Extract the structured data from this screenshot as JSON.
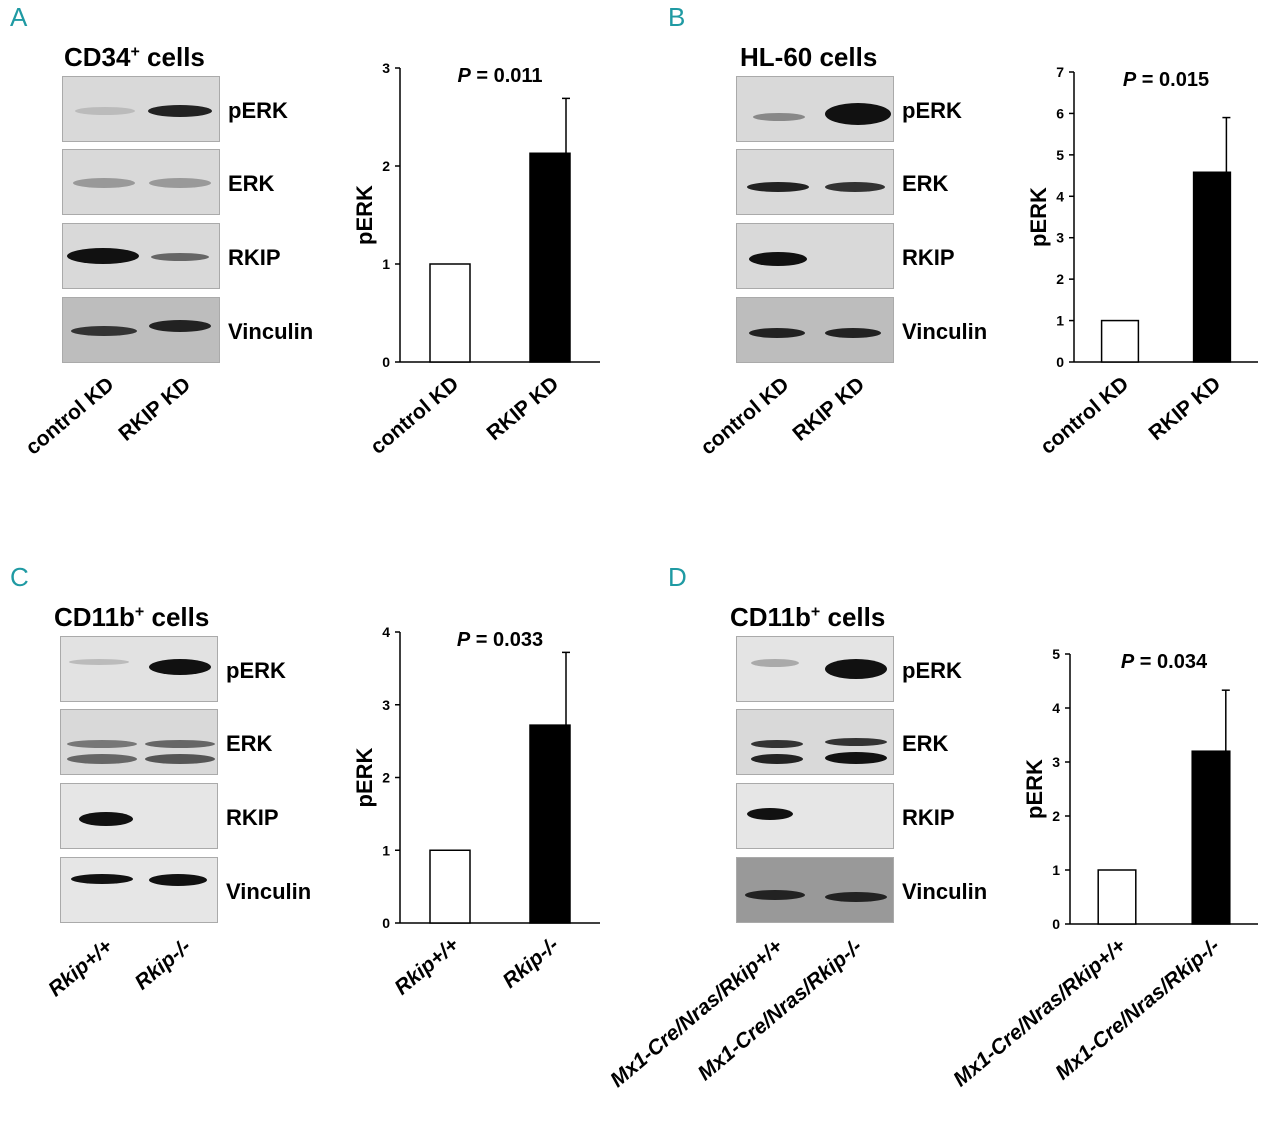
{
  "panels": [
    {
      "letter": "A",
      "blot_title": "CD34",
      "blot_title_sup": "+",
      "blot_title_rest": " cells",
      "blot_labels": [
        "pERK",
        "ERK",
        "RKIP",
        "Vinculin"
      ],
      "lane_labels": [
        "control KD",
        "RKIP KD"
      ],
      "chart_data": {
        "type": "bar",
        "categories": [
          "control KD",
          "RKIP KD"
        ],
        "values": [
          1,
          2.13
        ],
        "errors": [
          0,
          0.56
        ],
        "ylabel": "pERK",
        "ylim": [
          0,
          3
        ],
        "yticks": [
          0,
          1,
          2,
          3
        ],
        "annotation_p": "P",
        "annotation_value": " = 0.011",
        "bar_fills": [
          "#ffffff",
          "#000000"
        ]
      }
    },
    {
      "letter": "B",
      "blot_title": "HL-60 cells",
      "blot_title_sup": "",
      "blot_title_rest": "",
      "blot_labels": [
        "pERK",
        "ERK",
        "RKIP",
        "Vinculin"
      ],
      "lane_labels": [
        "control KD",
        "RKIP KD"
      ],
      "chart_data": {
        "type": "bar",
        "categories": [
          "control KD",
          "RKIP KD"
        ],
        "values": [
          1,
          4.58
        ],
        "errors": [
          0,
          1.32
        ],
        "ylabel": "pERK",
        "ylim": [
          0,
          7
        ],
        "yticks": [
          0,
          1,
          2,
          3,
          4,
          5,
          6,
          7
        ],
        "annotation_p": "P",
        "annotation_value": " = 0.015",
        "bar_fills": [
          "#ffffff",
          "#000000"
        ]
      }
    },
    {
      "letter": "C",
      "blot_title": "CD11b",
      "blot_title_sup": "+",
      "blot_title_rest": " cells",
      "blot_labels": [
        "pERK",
        "ERK",
        "RKIP",
        "Vinculin"
      ],
      "lane_labels": [
        "Rkip+/+",
        "Rkip-/-"
      ],
      "chart_data": {
        "type": "bar",
        "categories": [
          "Rkip+/+",
          "Rkip-/-"
        ],
        "values": [
          1,
          2.72
        ],
        "errors": [
          0,
          1.0
        ],
        "ylabel": "pERK",
        "ylim": [
          0,
          4
        ],
        "yticks": [
          0,
          1,
          2,
          3,
          4
        ],
        "annotation_p": "P",
        "annotation_value": " = 0.033",
        "bar_fills": [
          "#ffffff",
          "#000000"
        ]
      }
    },
    {
      "letter": "D",
      "blot_title": "CD11b",
      "blot_title_sup": "+",
      "blot_title_rest": " cells",
      "blot_labels": [
        "pERK",
        "ERK",
        "RKIP",
        "Vinculin"
      ],
      "lane_labels": [
        "Mx1-Cre/Nras/Rkip+/+",
        "Mx1-Cre/Nras/Rkip-/-"
      ],
      "chart_data": {
        "type": "bar",
        "categories": [
          "Mx1-Cre/Nras/Rkip+/+",
          "Mx1-Cre/Nras/Rkip-/-"
        ],
        "values": [
          1,
          3.2
        ],
        "errors": [
          0,
          1.13
        ],
        "ylabel": "pERK",
        "ylim": [
          0,
          5
        ],
        "yticks": [
          0,
          1,
          2,
          3,
          4,
          5
        ],
        "annotation_p": "P",
        "annotation_value": " = 0.034",
        "bar_fills": [
          "#ffffff",
          "#000000"
        ]
      }
    }
  ]
}
